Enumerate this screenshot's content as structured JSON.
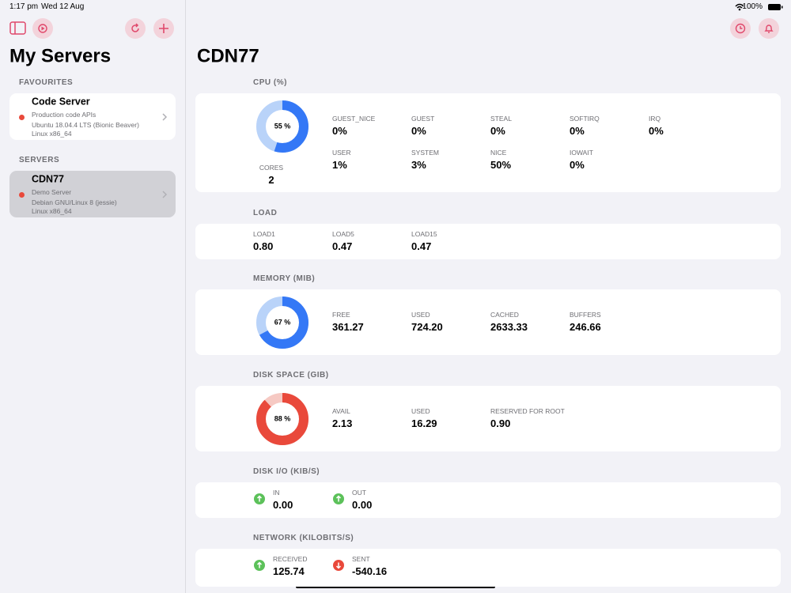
{
  "status_bar": {
    "time": "1:17 pm",
    "date": "Wed 12 Aug",
    "battery": "100%"
  },
  "sidebar": {
    "title": "My Servers",
    "sections": [
      {
        "header": "FAVOURITES",
        "servers": [
          {
            "name": "Code Server",
            "description": "Production code APIs",
            "os": "Ubuntu 18.04.4 LTS (Bionic Beaver)",
            "arch": "Linux x86_64"
          }
        ]
      },
      {
        "header": "SERVERS",
        "servers": [
          {
            "name": "CDN77",
            "description": "Demo Server",
            "os": "Debian GNU/Linux 8 (jessie)",
            "arch": "Linux x86_64",
            "selected": true
          }
        ]
      }
    ]
  },
  "detail": {
    "title": "CDN77",
    "sections": [
      {
        "header": "CPU (%)",
        "gauge": {
          "value": 55,
          "label": "55 %",
          "color": "#3478f6",
          "track": "#b9d3f9"
        },
        "extra": {
          "label": "CORES",
          "value": "2"
        },
        "metrics": [
          {
            "label": "GUEST_NICE",
            "value": "0%"
          },
          {
            "label": "GUEST",
            "value": "0%"
          },
          {
            "label": "STEAL",
            "value": "0%"
          },
          {
            "label": "SOFTIRQ",
            "value": "0%"
          },
          {
            "label": "IRQ",
            "value": "0%"
          },
          {
            "label": "USER",
            "value": "1%"
          },
          {
            "label": "SYSTEM",
            "value": "3%"
          },
          {
            "label": "NICE",
            "value": "50%"
          },
          {
            "label": "IOWAIT",
            "value": "0%"
          }
        ]
      },
      {
        "header": "LOAD",
        "metrics": [
          {
            "label": "LOAD1",
            "value": "0.80"
          },
          {
            "label": "LOAD5",
            "value": "0.47"
          },
          {
            "label": "LOAD15",
            "value": "0.47"
          }
        ]
      },
      {
        "header": "MEMORY (MIB)",
        "gauge": {
          "value": 67,
          "label": "67 %",
          "color": "#3478f6",
          "track": "#b9d3f9"
        },
        "metrics": [
          {
            "label": "FREE",
            "value": "361.27"
          },
          {
            "label": "USED",
            "value": "724.20"
          },
          {
            "label": "CACHED",
            "value": "2633.33"
          },
          {
            "label": "BUFFERS",
            "value": "246.66"
          }
        ]
      },
      {
        "header": "DISK SPACE (GIB)",
        "gauge": {
          "value": 88,
          "label": "88 %",
          "color": "#e9493b",
          "track": "#f6c9c3"
        },
        "metrics": [
          {
            "label": "AVAIL",
            "value": "2.13"
          },
          {
            "label": "USED",
            "value": "16.29"
          },
          {
            "label": "RESERVED FOR ROOT",
            "value": "0.90"
          }
        ]
      },
      {
        "header": "DISK I/O (KIB/S)",
        "icons": true,
        "metrics": [
          {
            "label": "IN",
            "value": "0.00"
          },
          {
            "label": "OUT",
            "value": "0.00"
          }
        ]
      },
      {
        "header": "NETWORK (KILOBITS/S)",
        "icons": true,
        "metrics": [
          {
            "label": "RECEIVED",
            "value": "125.74"
          },
          {
            "label": "SENT",
            "value": "-540.16"
          }
        ]
      }
    ]
  }
}
